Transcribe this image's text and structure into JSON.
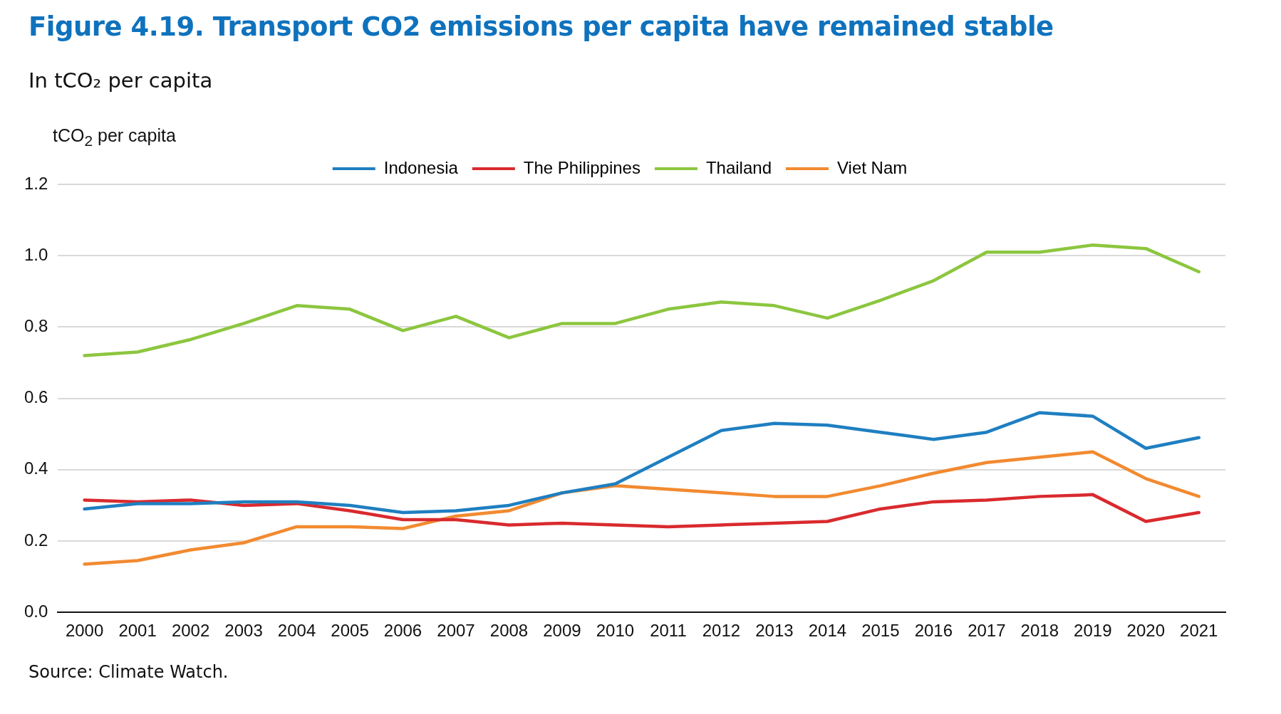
{
  "chart_data": {
    "type": "line",
    "title": "Figure 4.19. Transport CO2 emissions per capita have remained stable",
    "subtitle": "In tCO₂ per capita",
    "ylabel": "tCO$_{2}$ per capita",
    "annotations": [
      "Source: Climate Watch."
    ],
    "categories": [
      "2000",
      "2001",
      "2002",
      "2003",
      "2004",
      "2005",
      "2006",
      "2007",
      "2008",
      "2009",
      "2010",
      "2011",
      "2012",
      "2013",
      "2014",
      "2015",
      "2016",
      "2017",
      "2018",
      "2019",
      "2020",
      "2021"
    ],
    "series": [
      {
        "name": "Indonesia",
        "color": "#1f7fc1",
        "values": [
          0.29,
          0.305,
          0.305,
          0.31,
          0.31,
          0.3,
          0.28,
          0.285,
          0.3,
          0.335,
          0.36,
          0.435,
          0.51,
          0.53,
          0.525,
          0.505,
          0.485,
          0.505,
          0.56,
          0.55,
          0.46,
          0.49
        ]
      },
      {
        "name": "The Philippines",
        "color": "#d92a2e",
        "values": [
          0.315,
          0.31,
          0.315,
          0.3,
          0.305,
          0.285,
          0.26,
          0.26,
          0.245,
          0.25,
          0.245,
          0.24,
          0.245,
          0.25,
          0.255,
          0.29,
          0.31,
          0.315,
          0.325,
          0.33,
          0.255,
          0.28
        ]
      },
      {
        "name": "Thailand",
        "color": "#8cc63f",
        "values": [
          0.72,
          0.73,
          0.765,
          0.81,
          0.86,
          0.85,
          0.79,
          0.83,
          0.77,
          0.81,
          0.81,
          0.85,
          0.87,
          0.86,
          0.825,
          0.875,
          0.93,
          1.01,
          1.01,
          1.03,
          1.02,
          0.955
        ]
      },
      {
        "name": "Viet Nam",
        "color": "#f28a30",
        "values": [
          0.135,
          0.145,
          0.175,
          0.195,
          0.24,
          0.24,
          0.235,
          0.27,
          0.285,
          0.335,
          0.355,
          0.345,
          0.335,
          0.325,
          0.325,
          0.355,
          0.39,
          0.42,
          0.435,
          0.45,
          0.375,
          0.325
        ]
      }
    ],
    "ylim": [
      0,
      1.2
    ],
    "yticks": [
      {
        "value": 0,
        "label": "0.0"
      },
      0.2,
      0.4,
      0.6,
      0.8,
      {
        "value": 1,
        "label": "1.0"
      },
      1.2
    ],
    "grid": "y",
    "legend": "top",
    "marker": "none",
    "line_style": "solid"
  }
}
